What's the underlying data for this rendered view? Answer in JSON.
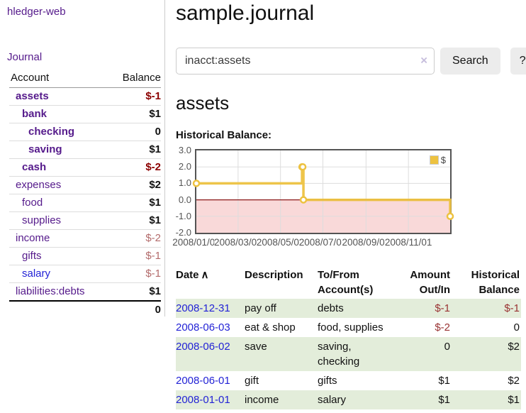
{
  "colors": {
    "accent_purple": "#551a8b",
    "link_blue": "#2323d6",
    "negative_strong": "#8b0000",
    "negative_muted": "#b36b6b",
    "negative_table": "#993333",
    "stripe_green": "#e3edda",
    "chart_line": "#edc240",
    "zero_line": "#8b1a1a",
    "negative_region": "#f9d9d9",
    "grid": "#dddddd",
    "plot_border": "#545454",
    "button_bg": "#ececec"
  },
  "sidebar": {
    "brand": "hledger-web",
    "journal_link": "Journal",
    "accounts": {
      "header_account": "Account",
      "header_balance": "Balance",
      "rows": [
        {
          "name": "assets",
          "balance": "$-1",
          "depth": 0,
          "selected": true,
          "negative": "strong"
        },
        {
          "name": "bank",
          "balance": "$1",
          "depth": 1,
          "selected": true
        },
        {
          "name": "checking",
          "balance": "0",
          "depth": 2,
          "selected": true
        },
        {
          "name": "saving",
          "balance": "$1",
          "depth": 2,
          "selected": true
        },
        {
          "name": "cash",
          "balance": "$-2",
          "depth": 1,
          "selected": true,
          "negative": "strong"
        },
        {
          "name": "expenses",
          "balance": "$2",
          "depth": 0
        },
        {
          "name": "food",
          "balance": "$1",
          "depth": 1
        },
        {
          "name": "supplies",
          "balance": "$1",
          "depth": 1
        },
        {
          "name": "income",
          "balance": "$-2",
          "depth": 0,
          "negative": "muted"
        },
        {
          "name": "gifts",
          "balance": "$-1",
          "depth": 1,
          "negative": "muted"
        },
        {
          "name": "salary",
          "balance": "$-1",
          "depth": 1,
          "negative": "muted",
          "link_color": "blue"
        },
        {
          "name": "liabilities:debts",
          "balance": "$1",
          "depth": 0
        }
      ],
      "total": "0"
    }
  },
  "header": {
    "title": "sample.journal"
  },
  "search": {
    "value": "inacct:assets",
    "clear_icon": "×",
    "search_button": "Search",
    "help_button": "?"
  },
  "account_page": {
    "heading": "assets",
    "section_label": "Historical Balance:"
  },
  "chart_data": {
    "type": "line",
    "line_style": "step",
    "title": "Historical Balance:",
    "x_range": [
      "2008/01/01",
      "2008/12/31"
    ],
    "x_ticks": [
      "2008/01/01",
      "2008/03/01",
      "2008/05/01",
      "2008/07/01",
      "2008/09/01",
      "2008/11/01"
    ],
    "y_ticks": [
      3.0,
      2.0,
      1.0,
      0.0,
      -1.0,
      -2.0
    ],
    "ylim": [
      -2,
      3
    ],
    "grid": true,
    "negative_region": true,
    "legend": {
      "position": "top-right",
      "label": "$"
    },
    "series": [
      {
        "name": "$",
        "color": "#edc240",
        "points": [
          {
            "date": "2008/01/01",
            "value": 1
          },
          {
            "date": "2008/06/01",
            "value": 2
          },
          {
            "date": "2008/06/02",
            "value": 2
          },
          {
            "date": "2008/06/03",
            "value": 0
          },
          {
            "date": "2008/12/31",
            "value": -1
          }
        ]
      }
    ]
  },
  "register": {
    "headers": [
      {
        "label": "Date",
        "sort_indicator": "∧"
      },
      {
        "label": "Description"
      },
      {
        "label": "To/From Account(s)"
      },
      {
        "label": "Amount Out/In"
      },
      {
        "label": "Historical Balance"
      }
    ],
    "rows": [
      {
        "date": "2008-12-31",
        "description": "pay off",
        "accounts": "debts",
        "amount": "$-1",
        "balance": "$-1"
      },
      {
        "date": "2008-06-03",
        "description": "eat & shop",
        "accounts": "food, supplies",
        "amount": "$-2",
        "balance": "0"
      },
      {
        "date": "2008-06-02",
        "description": "save",
        "accounts": "saving, checking",
        "amount": "0",
        "balance": "$2"
      },
      {
        "date": "2008-06-01",
        "description": "gift",
        "accounts": "gifts",
        "amount": "$1",
        "balance": "$2"
      },
      {
        "date": "2008-01-01",
        "description": "income",
        "accounts": "salary",
        "amount": "$1",
        "balance": "$1"
      }
    ]
  }
}
